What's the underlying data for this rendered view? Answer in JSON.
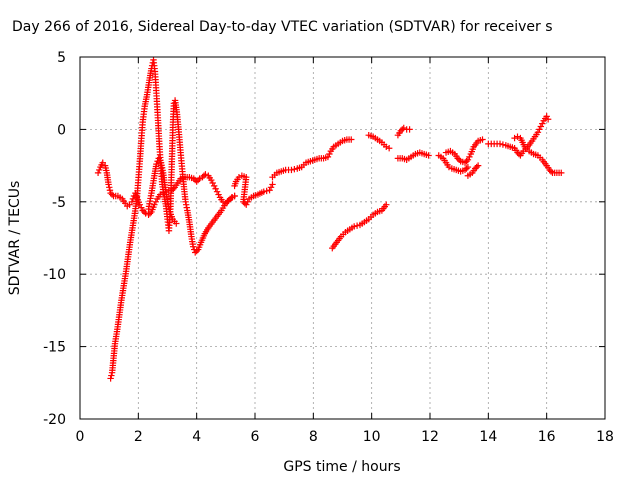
{
  "chart_data": {
    "type": "scatter",
    "title": "Day 266 of 2016, Sidereal Day-to-day VTEC variation (SDTVAR) for receiver s",
    "xlabel": "GPS time / hours",
    "ylabel": "SDTVAR / TECUs",
    "xlim": [
      0,
      18
    ],
    "ylim": [
      -20,
      5
    ],
    "xticks": [
      "0",
      "2",
      "4",
      "6",
      "8",
      "10",
      "12",
      "14",
      "16",
      "18"
    ],
    "yticks": [
      "5",
      "0",
      "-5",
      "-10",
      "-15",
      "-20"
    ],
    "grid": true,
    "marker": "plus",
    "colors": {
      "series": "#ff0000",
      "grid": "#a0a0a0",
      "axes": "#000000"
    },
    "series": [
      {
        "segments": [
          [
            [
              0.62,
              -3.0
            ],
            [
              0.7,
              -2.6
            ],
            [
              0.78,
              -2.3
            ],
            [
              0.86,
              -2.5
            ],
            [
              0.92,
              -3.0
            ],
            [
              0.98,
              -3.8
            ],
            [
              1.05,
              -4.4
            ],
            [
              1.15,
              -4.6
            ],
            [
              1.3,
              -4.6
            ],
            [
              1.45,
              -4.8
            ],
            [
              1.55,
              -5.1
            ],
            [
              1.62,
              -5.3
            ],
            [
              1.7,
              -5.2
            ],
            [
              1.78,
              -5.0
            ],
            [
              1.85,
              -4.6
            ],
            [
              1.9,
              -4.4
            ],
            [
              1.95,
              -4.7
            ],
            [
              2.05,
              -5.2
            ],
            [
              2.15,
              -5.6
            ],
            [
              2.25,
              -5.8
            ],
            [
              2.35,
              -5.9
            ],
            [
              2.45,
              -5.7
            ],
            [
              2.55,
              -5.2
            ],
            [
              2.65,
              -4.8
            ],
            [
              2.75,
              -4.5
            ],
            [
              2.85,
              -4.4
            ],
            [
              2.95,
              -4.3
            ],
            [
              3.05,
              -4.2
            ],
            [
              3.15,
              -4.2
            ],
            [
              3.25,
              -4.0
            ],
            [
              3.35,
              -3.7
            ],
            [
              3.45,
              -3.4
            ],
            [
              3.6,
              -3.3
            ],
            [
              3.75,
              -3.3
            ],
            [
              3.9,
              -3.4
            ],
            [
              4.0,
              -3.6
            ],
            [
              4.1,
              -3.4
            ],
            [
              4.2,
              -3.3
            ],
            [
              4.3,
              -3.1
            ],
            [
              4.4,
              -3.2
            ],
            [
              4.5,
              -3.5
            ],
            [
              4.6,
              -3.9
            ],
            [
              4.7,
              -4.3
            ],
            [
              4.8,
              -4.7
            ],
            [
              4.9,
              -5.0
            ],
            [
              5.0,
              -5.1
            ],
            [
              5.1,
              -4.9
            ],
            [
              5.2,
              -4.7
            ],
            [
              5.3,
              -4.6
            ]
          ],
          [
            [
              1.05,
              -17.2
            ],
            [
              1.1,
              -16.8
            ],
            [
              1.15,
              -15.8
            ],
            [
              1.2,
              -14.8
            ],
            [
              1.28,
              -13.8
            ],
            [
              1.35,
              -12.8
            ],
            [
              1.42,
              -11.8
            ],
            [
              1.5,
              -10.8
            ],
            [
              1.58,
              -9.8
            ],
            [
              1.65,
              -8.8
            ],
            [
              1.72,
              -7.8
            ],
            [
              1.8,
              -6.8
            ],
            [
              1.88,
              -5.8
            ],
            [
              1.95,
              -4.8
            ],
            [
              2.0,
              -3.5
            ],
            [
              2.05,
              -2.2
            ],
            [
              2.1,
              -0.8
            ],
            [
              2.15,
              0.5
            ],
            [
              2.22,
              1.6
            ],
            [
              2.3,
              2.4
            ],
            [
              2.38,
              3.4
            ],
            [
              2.45,
              4.2
            ],
            [
              2.52,
              4.8
            ],
            [
              2.57,
              4.0
            ],
            [
              2.62,
              2.5
            ],
            [
              2.67,
              0.8
            ],
            [
              2.72,
              -1.0
            ],
            [
              2.77,
              -2.5
            ],
            [
              2.82,
              -3.8
            ],
            [
              2.88,
              -4.5
            ],
            [
              2.95,
              -5.3
            ],
            [
              3.0,
              -6.2
            ],
            [
              3.05,
              -7.0
            ],
            [
              3.1,
              -5.5
            ],
            [
              3.13,
              -3.5
            ],
            [
              3.16,
              -1.5
            ],
            [
              3.19,
              0.5
            ],
            [
              3.22,
              1.8
            ],
            [
              3.26,
              2.0
            ],
            [
              3.32,
              1.2
            ],
            [
              3.38,
              0.0
            ],
            [
              3.45,
              -1.6
            ],
            [
              3.52,
              -3.1
            ],
            [
              3.58,
              -4.3
            ],
            [
              3.62,
              -5.0
            ],
            [
              3.68,
              -5.6
            ],
            [
              3.75,
              -6.4
            ],
            [
              3.82,
              -7.4
            ],
            [
              3.88,
              -8.1
            ],
            [
              3.95,
              -8.5
            ],
            [
              4.05,
              -8.3
            ],
            [
              4.15,
              -7.8
            ],
            [
              4.28,
              -7.2
            ],
            [
              4.4,
              -6.8
            ],
            [
              4.55,
              -6.4
            ],
            [
              4.7,
              -6.0
            ],
            [
              4.85,
              -5.6
            ],
            [
              5.0,
              -5.1
            ],
            [
              5.15,
              -4.8
            ],
            [
              5.3,
              -4.6
            ]
          ],
          [
            [
              2.35,
              -5.5
            ],
            [
              2.45,
              -4.4
            ],
            [
              2.55,
              -3.2
            ],
            [
              2.62,
              -2.4
            ],
            [
              2.7,
              -2.0
            ],
            [
              2.78,
              -2.3
            ],
            [
              2.85,
              -3.0
            ],
            [
              2.92,
              -4.0
            ],
            [
              3.0,
              -5.0
            ],
            [
              3.08,
              -5.7
            ],
            [
              3.18,
              -6.2
            ],
            [
              3.3,
              -6.5
            ]
          ],
          [
            [
              5.3,
              -3.9
            ],
            [
              5.35,
              -3.6
            ],
            [
              5.45,
              -3.3
            ],
            [
              5.55,
              -3.2
            ],
            [
              5.7,
              -3.3
            ],
            [
              5.6,
              -5.0
            ],
            [
              5.7,
              -5.2
            ],
            [
              5.8,
              -4.8
            ],
            [
              5.95,
              -4.6
            ],
            [
              6.1,
              -4.5
            ],
            [
              6.3,
              -4.3
            ],
            [
              6.5,
              -4.2
            ],
            [
              6.6,
              -3.8
            ]
          ],
          [
            [
              6.6,
              -3.3
            ],
            [
              6.75,
              -3.0
            ],
            [
              6.9,
              -2.9
            ],
            [
              7.05,
              -2.8
            ],
            [
              7.25,
              -2.8
            ],
            [
              7.45,
              -2.7
            ],
            [
              7.6,
              -2.6
            ],
            [
              7.75,
              -2.3
            ],
            [
              7.9,
              -2.2
            ],
            [
              8.05,
              -2.1
            ],
            [
              8.2,
              -2.0
            ],
            [
              8.35,
              -2.0
            ],
            [
              8.5,
              -1.9
            ],
            [
              8.6,
              -1.5
            ],
            [
              8.7,
              -1.2
            ],
            [
              8.85,
              -1.0
            ],
            [
              9.0,
              -0.8
            ],
            [
              9.15,
              -0.7
            ],
            [
              9.3,
              -0.7
            ]
          ],
          [
            [
              8.65,
              -8.2
            ],
            [
              8.8,
              -7.8
            ],
            [
              8.95,
              -7.4
            ],
            [
              9.1,
              -7.1
            ],
            [
              9.25,
              -6.9
            ],
            [
              9.4,
              -6.7
            ],
            [
              9.6,
              -6.6
            ],
            [
              9.75,
              -6.4
            ],
            [
              9.9,
              -6.2
            ],
            [
              10.05,
              -5.9
            ],
            [
              10.2,
              -5.7
            ],
            [
              10.35,
              -5.6
            ],
            [
              10.5,
              -5.2
            ]
          ],
          [
            [
              9.9,
              -0.4
            ],
            [
              10.05,
              -0.5
            ],
            [
              10.2,
              -0.7
            ],
            [
              10.35,
              -0.9
            ],
            [
              10.5,
              -1.2
            ],
            [
              10.6,
              -1.3
            ]
          ],
          [
            [
              10.9,
              -0.4
            ],
            [
              11.0,
              -0.1
            ],
            [
              11.1,
              0.1
            ],
            [
              11.2,
              0.0
            ],
            [
              11.3,
              0.0
            ]
          ],
          [
            [
              10.9,
              -2.0
            ],
            [
              11.05,
              -2.0
            ],
            [
              11.2,
              -2.1
            ],
            [
              11.35,
              -1.9
            ],
            [
              11.5,
              -1.7
            ],
            [
              11.65,
              -1.6
            ],
            [
              11.8,
              -1.7
            ],
            [
              11.95,
              -1.8
            ]
          ],
          [
            [
              12.3,
              -1.8
            ],
            [
              12.45,
              -2.0
            ],
            [
              12.55,
              -2.3
            ],
            [
              12.65,
              -2.6
            ],
            [
              12.75,
              -2.7
            ],
            [
              12.9,
              -2.8
            ],
            [
              13.05,
              -2.9
            ],
            [
              13.2,
              -2.8
            ],
            [
              13.3,
              -2.6
            ]
          ],
          [
            [
              12.55,
              -1.6
            ],
            [
              12.7,
              -1.5
            ],
            [
              12.85,
              -1.7
            ],
            [
              12.95,
              -2.0
            ],
            [
              13.05,
              -2.2
            ],
            [
              13.2,
              -2.3
            ],
            [
              13.3,
              -2.1
            ],
            [
              13.4,
              -1.7
            ],
            [
              13.5,
              -1.2
            ],
            [
              13.65,
              -0.8
            ],
            [
              13.8,
              -0.7
            ]
          ],
          [
            [
              13.3,
              -3.2
            ],
            [
              13.45,
              -3.0
            ],
            [
              13.55,
              -2.7
            ],
            [
              13.65,
              -2.5
            ]
          ],
          [
            [
              14.0,
              -1.0
            ],
            [
              14.2,
              -1.0
            ],
            [
              14.4,
              -1.0
            ],
            [
              14.6,
              -1.1
            ],
            [
              14.75,
              -1.2
            ],
            [
              14.9,
              -1.3
            ],
            [
              15.0,
              -1.6
            ],
            [
              15.1,
              -1.8
            ],
            [
              15.2,
              -1.5
            ],
            [
              15.35,
              -1.2
            ],
            [
              15.5,
              -0.8
            ],
            [
              15.6,
              -0.5
            ],
            [
              15.7,
              -0.2
            ],
            [
              15.8,
              0.2
            ],
            [
              15.9,
              0.6
            ],
            [
              16.0,
              0.9
            ],
            [
              16.05,
              0.7
            ]
          ],
          [
            [
              14.9,
              -0.6
            ],
            [
              15.0,
              -0.5
            ],
            [
              15.1,
              -0.6
            ],
            [
              15.25,
              -1.2
            ],
            [
              15.4,
              -1.5
            ],
            [
              15.55,
              -1.7
            ],
            [
              15.7,
              -1.8
            ],
            [
              15.85,
              -2.1
            ],
            [
              16.0,
              -2.5
            ],
            [
              16.1,
              -2.8
            ],
            [
              16.2,
              -3.0
            ],
            [
              16.35,
              -3.0
            ],
            [
              16.5,
              -3.0
            ]
          ]
        ]
      }
    ]
  }
}
